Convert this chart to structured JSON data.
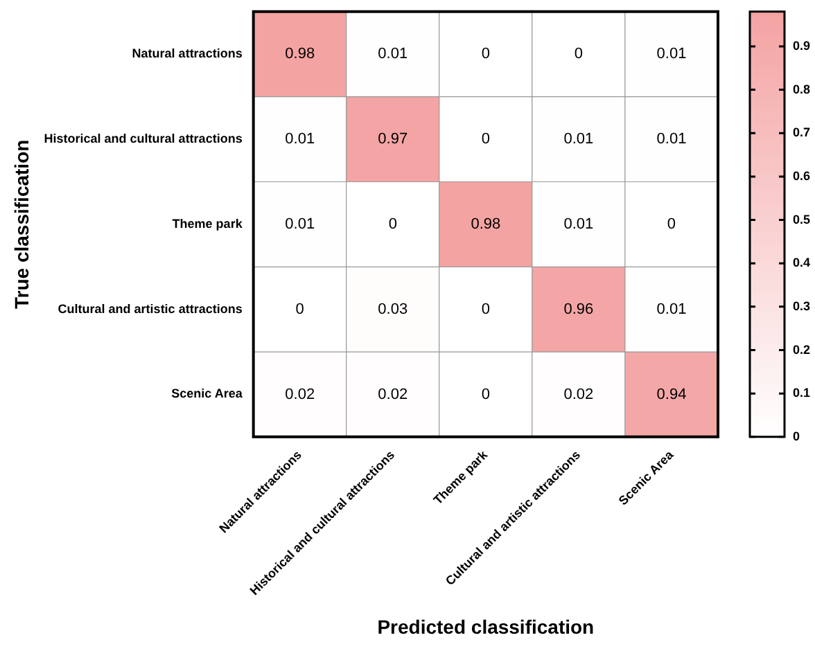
{
  "chart_data": {
    "type": "heatmap",
    "xlabel": "Predicted classification",
    "ylabel": "True classification",
    "categories": [
      "Natural attractions",
      "Historical and cultural attractions",
      "Theme park",
      "Cultural and artistic attractions",
      "Scenic Area"
    ],
    "y_categories": [
      "Natural attractions",
      "Historical and cultural attractions",
      "Theme park",
      "Cultural and artistic attractions",
      "Scenic Area"
    ],
    "cells": [
      [
        0.98,
        0.01,
        0,
        0,
        0.01
      ],
      [
        0.01,
        0.97,
        0,
        0.01,
        0.01
      ],
      [
        0.01,
        0,
        0.98,
        0.01,
        0
      ],
      [
        0,
        0.03,
        0,
        0.96,
        0.01
      ],
      [
        0.02,
        0.02,
        0,
        0.02,
        0.94
      ]
    ],
    "color": "#f4a3a3",
    "clim": [
      0,
      0.98
    ],
    "cticks": [
      0,
      0.1,
      0.2,
      0.3,
      0.4,
      0.5,
      0.6,
      0.7,
      0.8,
      0.9
    ],
    "data_labels": true
  }
}
